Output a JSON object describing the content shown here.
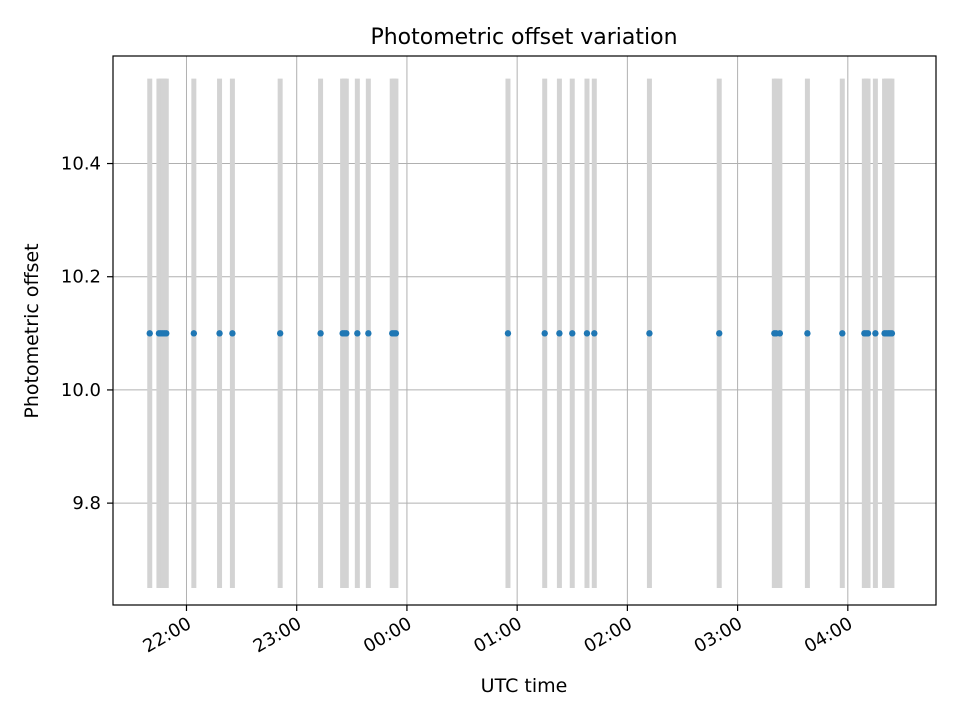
{
  "chart_data": {
    "type": "scatter",
    "title": "Photometric offset variation",
    "xlabel": "UTC time",
    "ylabel": "Photometric offset",
    "x_axis_kind": "time",
    "x_range": [
      "21:20",
      "04:48"
    ],
    "ylim": [
      9.62,
      10.59
    ],
    "x_ticks": [
      "22:00",
      "23:00",
      "00:00",
      "01:00",
      "02:00",
      "03:00",
      "04:00"
    ],
    "y_ticks": [
      9.8,
      10.0,
      10.2,
      10.4
    ],
    "grid": true,
    "errorbar_range": [
      9.65,
      10.55
    ],
    "points_x": [
      "21:40",
      "21:45",
      "21:46",
      "21:47",
      "21:48",
      "21:49",
      "22:04",
      "22:18",
      "22:25",
      "22:51",
      "23:13",
      "23:25",
      "23:26",
      "23:27",
      "23:33",
      "23:39",
      "23:52",
      "23:53",
      "23:54",
      "00:55",
      "01:15",
      "01:23",
      "01:30",
      "01:38",
      "01:42",
      "02:12",
      "02:50",
      "03:20",
      "03:21",
      "03:23",
      "03:38",
      "03:57",
      "04:09",
      "04:10",
      "04:11",
      "04:15",
      "04:20",
      "04:21",
      "04:22",
      "04:23",
      "04:24"
    ],
    "points_y": 10.1,
    "series": [
      {
        "values_note": "",
        "color": "#1f77b4"
      }
    ],
    "errorbar_color": "#d3d3d3"
  }
}
